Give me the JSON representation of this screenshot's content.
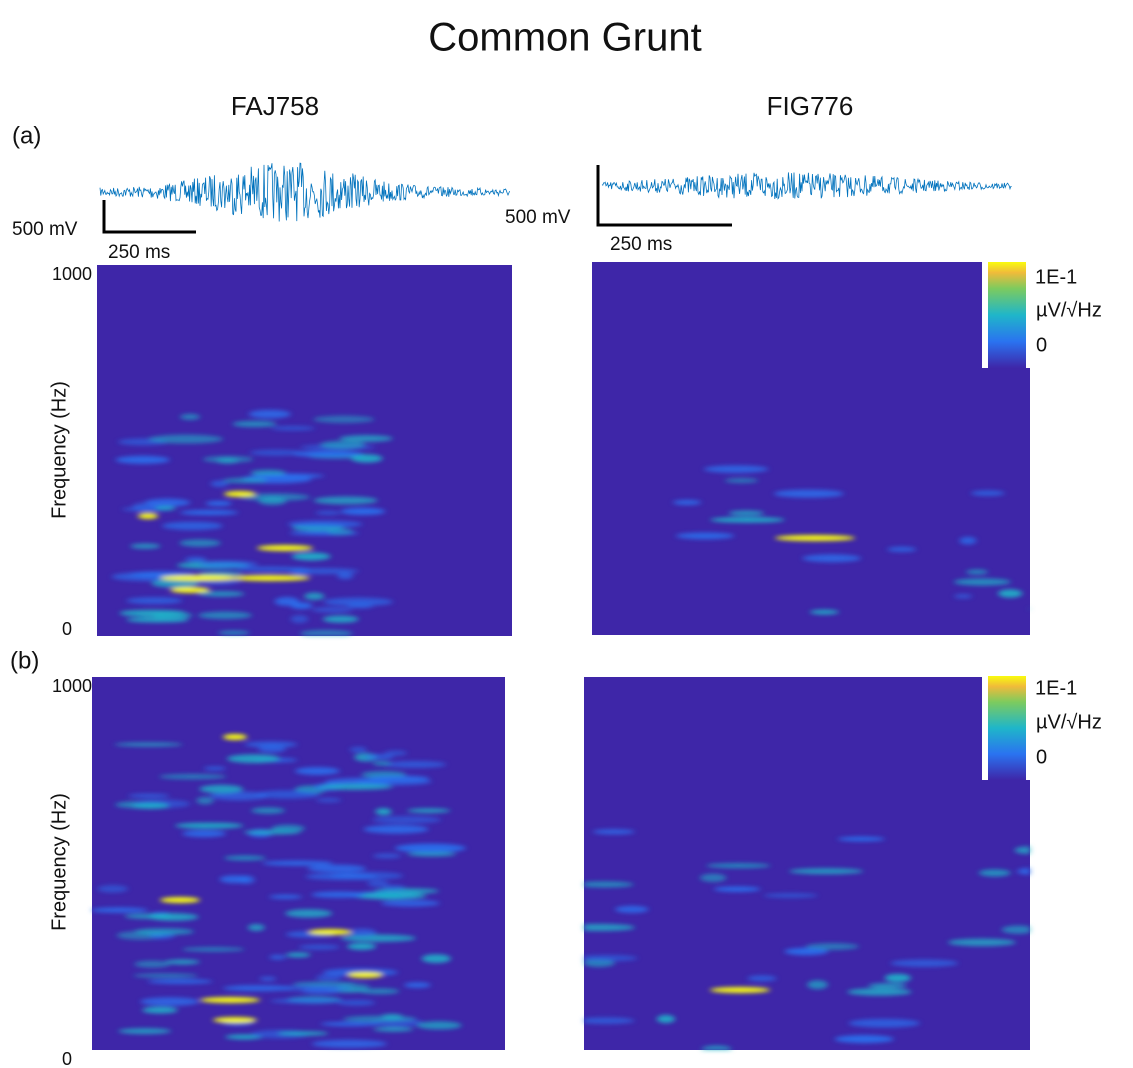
{
  "title": "Common Grunt",
  "columns": [
    "FAJ758",
    "FIG776"
  ],
  "panels": [
    {
      "label": "(a)",
      "scale_bars": [
        {
          "amplitude": "500 mV",
          "time": "250 ms"
        },
        {
          "amplitude": "500 mV",
          "time": "250 ms"
        }
      ],
      "y_axis": {
        "label": "Frequency (Hz)",
        "top": "1000",
        "bottom": "0"
      },
      "colorbar": {
        "top": "1E-1",
        "unit": "µV/√Hz",
        "bottom": "0"
      }
    },
    {
      "label": "(b)",
      "y_axis": {
        "label": "Frequency (Hz)",
        "top": "1000",
        "bottom": "0"
      },
      "colorbar": {
        "top": "1E-1",
        "unit": "µV/√Hz",
        "bottom": "0"
      }
    }
  ]
}
